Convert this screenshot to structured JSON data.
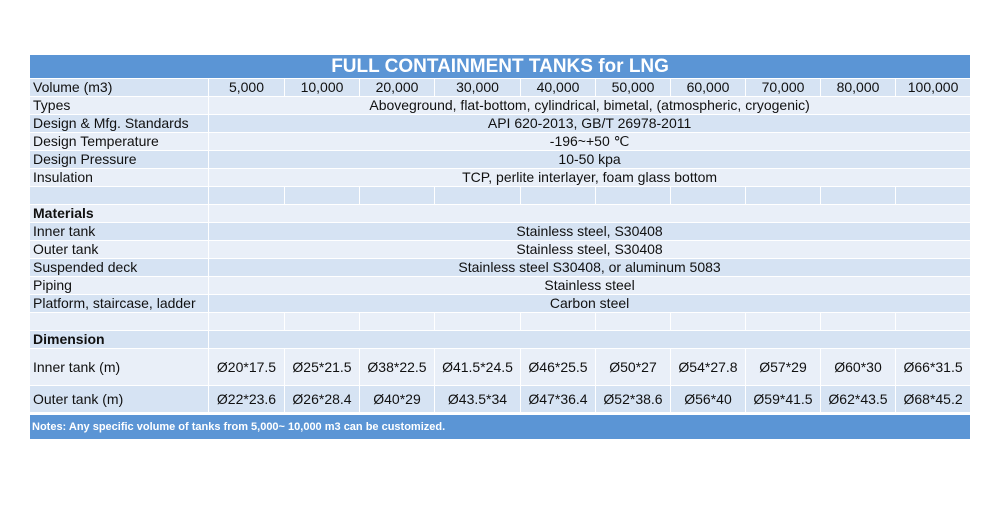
{
  "table": {
    "title": "FULL CONTAINMENT TANKS for LNG",
    "header": {
      "label": "Volume (m3)",
      "cells": [
        "5,000",
        "10,000",
        "20,000",
        "30,000",
        "40,000",
        "50,000",
        "60,000",
        "70,000",
        "80,000",
        "100,000"
      ]
    },
    "general": [
      {
        "label": "Types",
        "value": "Aboveground, flat-bottom, cylindrical, bimetal, (atmospheric, cryogenic)"
      },
      {
        "label": "Design & Mfg. Standards",
        "value": "API 620-2013, GB/T 26978-2011"
      },
      {
        "label": "Design Temperature",
        "value": "-196~+50 ℃"
      },
      {
        "label": "Design Pressure",
        "value": "10-50 kpa"
      },
      {
        "label": "Insulation",
        "value": "TCP, perlite interlayer, foam glass bottom"
      }
    ],
    "materials": {
      "heading": "Materials",
      "rows": [
        {
          "label": "Inner tank",
          "value": "Stainless steel, S30408"
        },
        {
          "label": "Outer tank",
          "value": "Stainless steel, S30408"
        },
        {
          "label": "Suspended deck",
          "value": "Stainless steel S30408, or aluminum 5083"
        },
        {
          "label": "Piping",
          "value": "Stainless steel"
        },
        {
          "label": "Platform, staircase, ladder",
          "value": "Carbon steel"
        }
      ]
    },
    "dimension": {
      "heading": "Dimension",
      "rows": [
        {
          "label": "Inner tank (m)",
          "cells": [
            "Ø20*17.5",
            "Ø25*21.5",
            "Ø38*22.5",
            "Ø41.5*24.5",
            "Ø46*25.5",
            "Ø50*27",
            "Ø54*27.8",
            "Ø57*29",
            "Ø60*30",
            "Ø66*31.5"
          ]
        },
        {
          "label": "Outer tank (m)",
          "cells": [
            "Ø22*23.6",
            "Ø26*28.4",
            "Ø40*29",
            "Ø43.5*34",
            "Ø47*36.4",
            "Ø52*38.6",
            "Ø56*40",
            "Ø59*41.5",
            "Ø62*43.5",
            "Ø68*45.2"
          ]
        }
      ]
    },
    "notes": "Notes: Any specific volume of tanks from 5,000~ 10,000 m3 can be customized."
  }
}
